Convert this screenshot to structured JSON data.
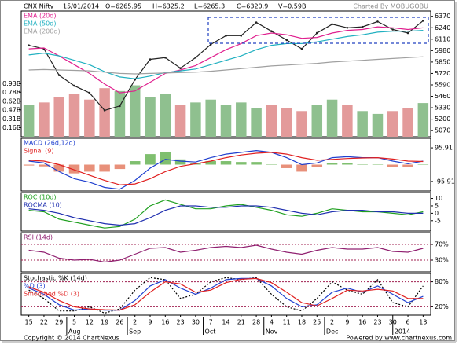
{
  "header": {
    "symbol": "CNX Nifty",
    "date": "15/01/2014",
    "open": "O=6265.95",
    "high": "H=6325.2",
    "low": "L=6265.3",
    "close": "C=6320.9",
    "volume": "V=0.59B",
    "credit": "Charted By MOBUGOBU"
  },
  "x_axis": {
    "labels": [
      "15",
      "22",
      "29",
      "5",
      "12",
      "19",
      "26",
      "2",
      "9",
      "16",
      "23",
      "30",
      "7",
      "14",
      "21",
      "28",
      "4",
      "11",
      "18",
      "25",
      "2",
      "9",
      "16",
      "23",
      "30",
      "6",
      "13"
    ],
    "months": [
      "Aug",
      "Sep",
      "Oct",
      "Nov",
      "Dec",
      "2014"
    ]
  },
  "chart_data": [
    {
      "type": "line",
      "ylim": [
        5000,
        6430
      ],
      "yticks": [
        6370,
        6240,
        6110,
        5980,
        5850,
        5720,
        5590,
        5460,
        5330,
        5200,
        5070
      ],
      "y2lim": [
        0,
        2.2
      ],
      "y2ticks": [
        {
          "value": 0.93,
          "label": "0.93B"
        },
        {
          "value": 0.78,
          "label": "0.78B"
        },
        {
          "value": 0.62,
          "label": "0.62B"
        },
        {
          "value": 0.47,
          "label": "0.47B"
        },
        {
          "value": 0.31,
          "label": "0.31B"
        },
        {
          "value": 0.16,
          "label": "0.16B"
        }
      ],
      "series": [
        {
          "type": "bar",
          "axis": "y2",
          "color": "#8fc08f",
          "down_color": "#e39a9a",
          "values": [
            0.55,
            0.6,
            0.7,
            0.75,
            0.65,
            0.85,
            0.8,
            0.9,
            0.7,
            0.75,
            0.55,
            0.6,
            0.65,
            0.55,
            0.6,
            0.5,
            0.55,
            0.5,
            0.45,
            0.55,
            0.65,
            0.55,
            0.45,
            0.4,
            0.45,
            0.5,
            0.59
          ]
        },
        {
          "type": "line",
          "color": "#222222",
          "values": [
            6040,
            6000,
            5700,
            5580,
            5500,
            5300,
            5350,
            5650,
            5880,
            5900,
            5780,
            5900,
            6050,
            6150,
            6150,
            6300,
            6200,
            6100,
            6000,
            6180,
            6280,
            6240,
            6250,
            6310,
            6220,
            6180,
            6320
          ]
        },
        {
          "name": "EMA (20d)",
          "type": "line",
          "color": "#e0208f",
          "values": [
            6000,
            6010,
            5920,
            5820,
            5720,
            5600,
            5500,
            5520,
            5620,
            5720,
            5760,
            5810,
            5900,
            5990,
            6060,
            6150,
            6180,
            6160,
            6120,
            6130,
            6180,
            6210,
            6220,
            6250,
            6240,
            6220,
            6240
          ]
        },
        {
          "name": "EMA (50d)",
          "type": "line",
          "color": "#20b0c0",
          "values": [
            5930,
            5950,
            5920,
            5870,
            5820,
            5740,
            5680,
            5660,
            5690,
            5730,
            5750,
            5770,
            5820,
            5870,
            5920,
            5990,
            6040,
            6060,
            6060,
            6080,
            6110,
            6140,
            6160,
            6190,
            6200,
            6200,
            6210
          ]
        },
        {
          "name": "EMA (200d)",
          "type": "line",
          "color": "#a0a0a0",
          "values": [
            5760,
            5765,
            5760,
            5755,
            5750,
            5735,
            5720,
            5715,
            5720,
            5725,
            5730,
            5735,
            5745,
            5760,
            5775,
            5790,
            5805,
            5815,
            5825,
            5835,
            5850,
            5860,
            5870,
            5880,
            5890,
            5900,
            5910
          ]
        }
      ]
    },
    {
      "type": "line",
      "ylim": [
        -150,
        150
      ],
      "yticks": [
        95.91,
        -95.91
      ],
      "series": [
        {
          "type": "bar",
          "color": "#7fbf6f",
          "down_color": "#e8907a",
          "values": [
            -5,
            -10,
            -40,
            -50,
            -40,
            -40,
            -25,
            20,
            60,
            70,
            30,
            10,
            20,
            20,
            15,
            15,
            0,
            -20,
            -40,
            -15,
            10,
            10,
            2,
            0,
            -12,
            -15,
            2
          ]
        },
        {
          "name": "MACD (26d,12d)",
          "type": "line",
          "color": "#1f3fcf",
          "values": [
            20,
            10,
            -40,
            -80,
            -100,
            -130,
            -140,
            -90,
            -20,
            30,
            20,
            15,
            40,
            60,
            70,
            80,
            70,
            40,
            0,
            10,
            40,
            45,
            40,
            40,
            20,
            5,
            20
          ]
        },
        {
          "name": "Signal (9)",
          "type": "line",
          "color": "#e02020",
          "values": [
            25,
            20,
            0,
            -30,
            -60,
            -90,
            -115,
            -110,
            -80,
            -40,
            -10,
            5,
            20,
            40,
            55,
            65,
            70,
            60,
            40,
            25,
            30,
            35,
            38,
            40,
            32,
            20,
            18
          ]
        }
      ]
    },
    {
      "type": "line",
      "ylim": [
        -12,
        14
      ],
      "yticks": [
        10,
        5,
        0,
        -5
      ],
      "series": [
        {
          "name": "ROC (10d)",
          "type": "line",
          "color": "#20a020",
          "values": [
            2,
            1,
            -4,
            -6,
            -8,
            -10,
            -9,
            -4,
            5,
            9,
            6,
            3,
            3,
            5,
            6,
            4,
            2,
            -1,
            -2,
            0,
            3,
            2,
            1,
            1,
            0,
            -1,
            1
          ]
        },
        {
          "name": "ROCMA (10)",
          "type": "line",
          "color": "#2030b0",
          "values": [
            3,
            2,
            0,
            -3,
            -5,
            -7,
            -8,
            -7,
            -3,
            2,
            5,
            5,
            4,
            4,
            5,
            5,
            4,
            2,
            0,
            -1,
            1,
            2,
            2,
            1,
            1,
            0,
            0
          ]
        }
      ]
    },
    {
      "type": "line",
      "ylim": [
        0,
        100
      ],
      "yticks": [
        {
          "value": 70,
          "label": "70%"
        },
        {
          "value": 30,
          "label": "30%"
        }
      ],
      "ref_lines": true,
      "series": [
        {
          "name": "RSI (14d)",
          "type": "line",
          "color": "#902070",
          "values": [
            55,
            50,
            35,
            30,
            32,
            25,
            30,
            45,
            60,
            62,
            50,
            55,
            62,
            65,
            62,
            68,
            58,
            50,
            45,
            55,
            62,
            58,
            58,
            62,
            52,
            50,
            60
          ]
        }
      ]
    },
    {
      "type": "line",
      "ylim": [
        0,
        100
      ],
      "yticks": [
        {
          "value": 80,
          "label": "80%"
        },
        {
          "value": 20,
          "label": "20%"
        }
      ],
      "ref_lines": true,
      "series": [
        {
          "name": "Stochastic %K (14d)",
          "type": "line",
          "color": "#000000",
          "dashed": true,
          "values": [
            60,
            40,
            10,
            10,
            20,
            5,
            15,
            60,
            90,
            85,
            40,
            50,
            80,
            90,
            85,
            90,
            50,
            20,
            10,
            40,
            80,
            60,
            50,
            85,
            30,
            20,
            70
          ]
        },
        {
          "name": "%D (3)",
          "type": "line",
          "color": "#2040d0",
          "values": [
            65,
            50,
            25,
            12,
            15,
            12,
            12,
            35,
            70,
            85,
            65,
            50,
            65,
            85,
            88,
            88,
            70,
            40,
            20,
            25,
            55,
            65,
            55,
            70,
            50,
            30,
            45
          ]
        },
        {
          "name": "Smoothed %D (3)",
          "type": "line",
          "color": "#e02020",
          "values": [
            68,
            55,
            35,
            20,
            15,
            13,
            12,
            25,
            55,
            80,
            75,
            55,
            60,
            78,
            86,
            88,
            78,
            55,
            30,
            22,
            40,
            60,
            58,
            62,
            58,
            40,
            40
          ]
        }
      ]
    }
  ],
  "footer": {
    "copyright": "Copyright © 2014 ChartNexus",
    "powered": "Powered by www.chartnexus.com"
  }
}
